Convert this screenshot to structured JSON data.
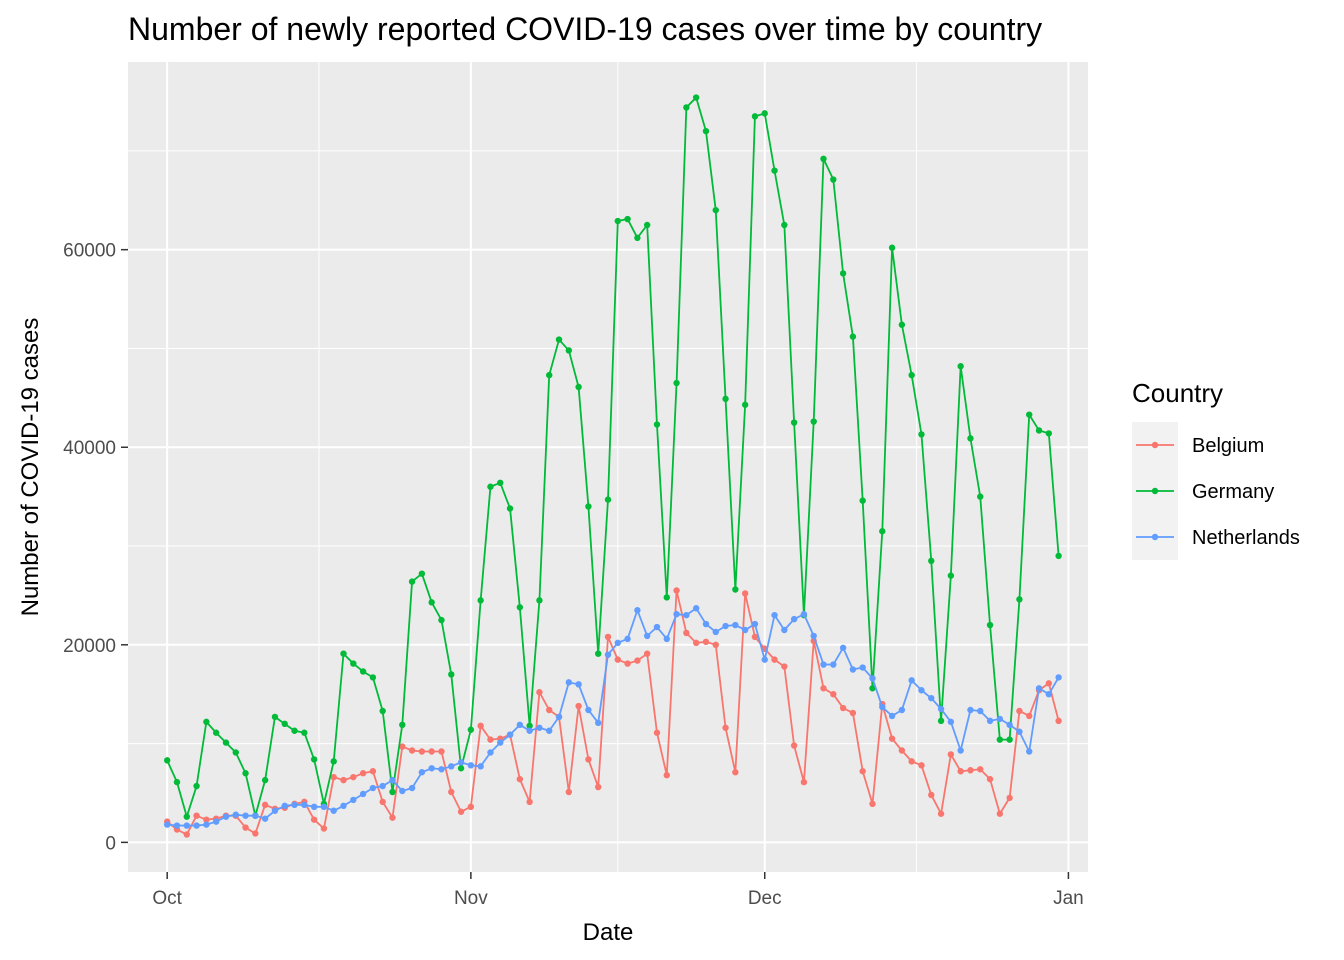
{
  "chart_data": {
    "type": "line",
    "title": "Number of newly reported COVID-19 cases over time by country",
    "xlabel": "Date",
    "ylabel": "Number of COVID-19 cases",
    "x_start": "2020-10-01",
    "x_end": "2020-12-29",
    "xlim": [
      "2020-09-27",
      "2021-01-03"
    ],
    "ylim": [
      -3000,
      79000
    ],
    "x_ticks": [
      {
        "date": "2020-10-01",
        "label": "Oct"
      },
      {
        "date": "2020-11-01",
        "label": "Nov"
      },
      {
        "date": "2020-12-01",
        "label": "Dec"
      },
      {
        "date": "2021-01-01",
        "label": "Jan"
      }
    ],
    "y_ticks": [
      0,
      20000,
      40000,
      60000
    ],
    "grid": true,
    "legend_title": "Country",
    "legend_position": "right",
    "series": [
      {
        "name": "Belgium",
        "color": "#F8766D",
        "values": [
          2100,
          1300,
          800,
          2700,
          2300,
          2400,
          2700,
          2700,
          1500,
          900,
          3800,
          3400,
          3500,
          3900,
          4100,
          2300,
          1400,
          6600,
          6300,
          6600,
          7000,
          7200,
          4100,
          2500,
          9700,
          9300,
          9200,
          9200,
          9200,
          5100,
          3100,
          3600,
          11800,
          10400,
          10500,
          10900,
          6400,
          4100,
          15200,
          13400,
          12700,
          5100,
          13800,
          8400,
          5600,
          20800,
          18500,
          18100,
          18400,
          19100,
          11100,
          6800,
          25500,
          21200,
          20200,
          20300,
          20000,
          11600,
          7100,
          25200,
          20800,
          19600,
          18500,
          17800,
          9800,
          6100,
          20400,
          15600,
          15000,
          13600,
          13100,
          7200,
          3900,
          14000,
          10500,
          9300,
          8200,
          7800,
          4800,
          2900,
          8900,
          7200,
          7300,
          7400,
          6400,
          2900,
          4500,
          13300,
          12800,
          15400,
          16100,
          12300
        ]
      },
      {
        "name": "Germany",
        "color": "#00BA38",
        "values": [
          8300,
          6100,
          2600,
          5700,
          12200,
          11100,
          10100,
          9100,
          7000,
          2700,
          6300,
          12700,
          12000,
          11300,
          11100,
          8400,
          3900,
          8200,
          19100,
          18100,
          17300,
          16700,
          13300,
          5100,
          11900,
          26400,
          27200,
          24300,
          22500,
          17000,
          7500,
          11400,
          24500,
          36000,
          36400,
          33800,
          23800,
          11800,
          24500,
          47300,
          50900,
          49800,
          46100,
          34000,
          19100,
          34700,
          62900,
          63100,
          61200,
          62500,
          42300,
          24800,
          46500,
          74400,
          75400,
          72000,
          64000,
          44900,
          25600,
          44300,
          73500,
          73800,
          68000,
          62500,
          42500,
          23000,
          42600,
          69200,
          67100,
          57600,
          51200,
          34600,
          15600,
          31500,
          60200,
          52400,
          47300,
          41300,
          28500,
          12300,
          27000,
          48200,
          40900,
          35000,
          22000,
          10400,
          10400,
          24600,
          43300,
          41700,
          41400,
          29000
        ]
      },
      {
        "name": "Netherlands",
        "color": "#619CFF",
        "values": [
          1800,
          1700,
          1700,
          1700,
          1800,
          2100,
          2600,
          2800,
          2700,
          2700,
          2400,
          3200,
          3700,
          3800,
          3800,
          3600,
          3600,
          3200,
          3700,
          4300,
          4900,
          5500,
          5700,
          6300,
          5200,
          5500,
          7100,
          7500,
          7400,
          7700,
          8100,
          7800,
          7700,
          9100,
          10100,
          10900,
          11900,
          11300,
          11600,
          11300,
          12700,
          16200,
          16000,
          13400,
          12100,
          19000,
          20200,
          20600,
          23500,
          20900,
          21800,
          20600,
          23100,
          23000,
          23700,
          22100,
          21300,
          21900,
          22000,
          21500,
          22100,
          18500,
          23000,
          21500,
          22600,
          23100,
          20900,
          18000,
          18000,
          19700,
          17500,
          17700,
          16600,
          13700,
          12800,
          13400,
          16400,
          15400,
          14600,
          13500,
          12200,
          9300,
          13400,
          13300,
          12300,
          12500,
          11900,
          11200,
          9200,
          15600,
          15000,
          16700
        ]
      }
    ]
  }
}
